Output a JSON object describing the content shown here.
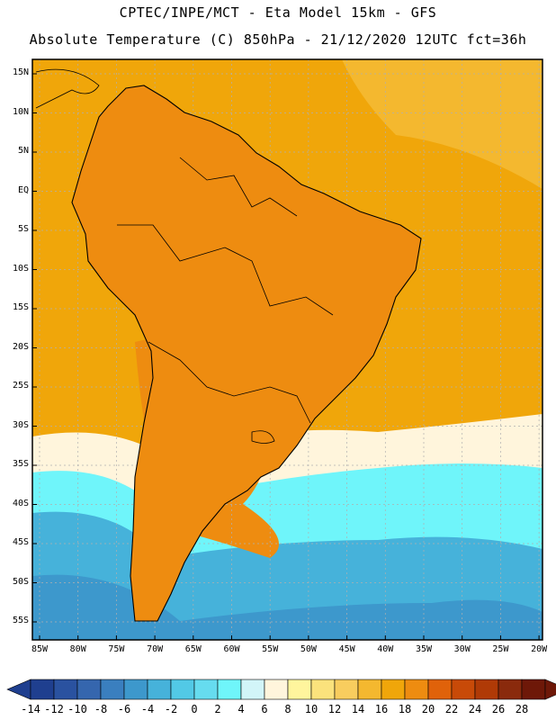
{
  "header": {
    "line1": "CPTEC/INPE/MCT -  Eta Model 15km - GFS",
    "line2": "Absolute Temperature (C) 850hPa - 21/12/2020 12UTC fct=36h"
  },
  "axes": {
    "lat_labels": [
      "15N",
      "10N",
      "5N",
      "EQ",
      "5S",
      "10S",
      "15S",
      "20S",
      "25S",
      "30S",
      "35S",
      "40S",
      "45S",
      "50S",
      "55S"
    ],
    "lon_labels": [
      "85W",
      "80W",
      "75W",
      "70W",
      "65W",
      "60W",
      "55W",
      "50W",
      "45W",
      "40W",
      "35W",
      "30W",
      "25W",
      "20W"
    ]
  },
  "colorbar": {
    "labels": [
      "-14",
      "-12",
      "-10",
      "-8",
      "-6",
      "-4",
      "-2",
      "0",
      "2",
      "4",
      "6",
      "8",
      "10",
      "12",
      "14",
      "16",
      "18",
      "20",
      "22",
      "24",
      "26",
      "28"
    ],
    "colors": [
      "#1f3f8f",
      "#2a52a0",
      "#3566ae",
      "#3a7fbf",
      "#3d98cc",
      "#46b2da",
      "#52c9e6",
      "#66dcef",
      "#6ff5fa",
      "#d2f5f8",
      "#fff5dc",
      "#fff59d",
      "#fbe27c",
      "#f8cd5e",
      "#f4b82f",
      "#f0a60a",
      "#ee8c10",
      "#e0620a",
      "#c84a08",
      "#b03a06",
      "#8a2a0c",
      "#6e1808",
      "#6e1808"
    ]
  },
  "map": {
    "field_colors": {
      "ocean_warm": "#f0a60a",
      "ocean_mild": "#f4b82f",
      "land": "#ee8c10",
      "hot": "#e0620a",
      "hottest": "#b03a06",
      "cool": "#fff5dc",
      "cold": "#6ff5fa",
      "colder": "#46b2da",
      "coldest": "#3d98cc"
    }
  }
}
